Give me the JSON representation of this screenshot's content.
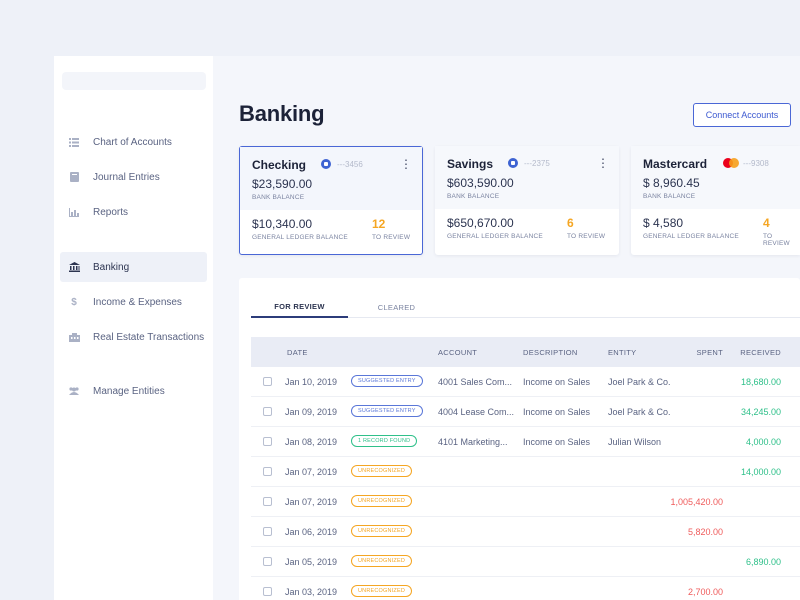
{
  "sidebar": {
    "items": [
      {
        "label": "Chart of Accounts",
        "icon": "list-icon"
      },
      {
        "label": "Journal Entries",
        "icon": "book-icon"
      },
      {
        "label": "Reports",
        "icon": "bar-chart-icon"
      },
      {
        "label": "Banking",
        "icon": "bank-icon",
        "active": true
      },
      {
        "label": "Income & Expenses",
        "icon": "dollar-icon"
      },
      {
        "label": "Real Estate Transactions",
        "icon": "building-icon"
      },
      {
        "label": "Manage Entities",
        "icon": "users-icon"
      }
    ]
  },
  "header": {
    "title": "Banking",
    "connect_label": "Connect Accounts"
  },
  "cards": [
    {
      "name": "Checking",
      "acct": "---3456",
      "bank_balance": "$23,590.00",
      "bank_balance_label": "BANK BALANCE",
      "gl_balance": "$10,340.00",
      "gl_balance_label": "GENERAL LEDGER BALANCE",
      "review_count": "12",
      "review_label": "TO REVIEW"
    },
    {
      "name": "Savings",
      "acct": "---2375",
      "bank_balance": "$603,590.00",
      "bank_balance_label": "BANK BALANCE",
      "gl_balance": "$650,670.00",
      "gl_balance_label": "GENERAL LEDGER BALANCE",
      "review_count": "6",
      "review_label": "TO REVIEW"
    },
    {
      "name": "Mastercard",
      "acct": "---9308",
      "bank_balance": "$ 8,960.45",
      "bank_balance_label": "BANK BALANCE",
      "gl_balance": "$ 4,580",
      "gl_balance_label": "GENERAL LEDGER BALANCE",
      "review_count": "4",
      "review_label": "TO REVIEW"
    }
  ],
  "tabs": [
    "FOR REVIEW",
    "CLEARED"
  ],
  "table": {
    "headers": {
      "date": "DATE",
      "account": "ACCOUNT",
      "description": "DESCRIPTION",
      "entity": "ENTITY",
      "spent": "SPENT",
      "received": "RECEIVED"
    },
    "rows": [
      {
        "date": "Jan 10, 2019",
        "badge": "SUGGESTED ENTRY",
        "account": "4001 Sales Com...",
        "description": "Income on Sales",
        "entity": "Joel Park & Co.",
        "spent": "",
        "received": "18,680.00"
      },
      {
        "date": "Jan 09, 2019",
        "badge": "SUGGESTED ENTRY",
        "account": "4004 Lease Com...",
        "description": "Income on Sales",
        "entity": "Joel Park & Co.",
        "spent": "",
        "received": "34,245.00"
      },
      {
        "date": "Jan 08, 2019",
        "badge": "1 RECORD FOUND",
        "account": "4101 Marketing...",
        "description": "Income on Sales",
        "entity": "Julian Wilson",
        "spent": "",
        "received": "4,000.00"
      },
      {
        "date": "Jan 07, 2019",
        "badge": "UNRECOGNIZED",
        "account": "",
        "description": "",
        "entity": "",
        "spent": "",
        "received": "14,000.00"
      },
      {
        "date": "Jan 07, 2019",
        "badge": "UNRECOGNIZED",
        "account": "",
        "description": "",
        "entity": "",
        "spent": "1,005,420.00",
        "received": ""
      },
      {
        "date": "Jan 06, 2019",
        "badge": "UNRECOGNIZED",
        "account": "",
        "description": "",
        "entity": "",
        "spent": "5,820.00",
        "received": ""
      },
      {
        "date": "Jan 05, 2019",
        "badge": "UNRECOGNIZED",
        "account": "",
        "description": "",
        "entity": "",
        "spent": "",
        "received": "6,890.00"
      },
      {
        "date": "Jan 03, 2019",
        "badge": "UNRECOGNIZED",
        "account": "",
        "description": "",
        "entity": "",
        "spent": "2,700.00",
        "received": ""
      }
    ]
  },
  "colors": {
    "accent": "#4a67d6",
    "suggested": "#5a77d8",
    "found": "#2fc08a",
    "unrecognized": "#f5a623",
    "spent": "#ef5b5b",
    "received": "#2fc08a"
  }
}
